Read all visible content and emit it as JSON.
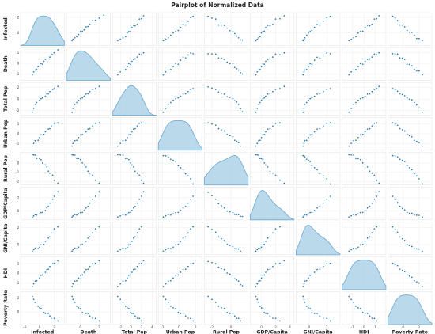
{
  "chart_data": {
    "type": "scatter",
    "title": "Pairplot of Normalized Data",
    "variables": [
      "Infected",
      "Death",
      "Total Pop",
      "Urban Pop",
      "Rural Pop",
      "GDP/Capita",
      "GNI/Capita",
      "HDI",
      "Poverty Rate"
    ],
    "diagonal": "kde",
    "grid": true,
    "xticks": [
      [
        "-2",
        "0",
        "2"
      ],
      [
        "0",
        "2"
      ],
      [
        "-2",
        "0",
        "2",
        "4"
      ],
      [
        "-2",
        "0",
        "2"
      ],
      [
        "-2",
        "0"
      ],
      [
        "0",
        "2",
        "4"
      ],
      [
        "0",
        "2"
      ],
      [
        "-1",
        "0",
        "1"
      ],
      [
        "0",
        "2"
      ]
    ],
    "yticks": [
      [
        "2",
        "0"
      ],
      [
        "1",
        "0",
        "-1"
      ],
      [
        "2",
        "0",
        "-2"
      ],
      [
        "1",
        "0",
        "-1"
      ],
      [
        "0",
        "-1",
        "-2"
      ],
      [
        "2",
        "0"
      ],
      [
        "2",
        "0"
      ],
      [
        "1",
        "0",
        "-1"
      ],
      [
        "2",
        "0"
      ]
    ],
    "xlim": [
      [
        -2.6,
        3.4
      ],
      [
        -1.5,
        3.2
      ],
      [
        -3.5,
        4.8
      ],
      [
        -2.5,
        2.8
      ],
      [
        -2.8,
        1.8
      ],
      [
        -1.6,
        4.6
      ],
      [
        -1.5,
        3.5
      ],
      [
        -1.9,
        1.9
      ],
      [
        -1.9,
        3.6
      ]
    ],
    "ylim": [
      [
        -1.6,
        2.6
      ],
      [
        -1.6,
        1.5
      ],
      [
        -2.8,
        2.9
      ],
      [
        -1.7,
        1.7
      ],
      [
        -2.4,
        1.2
      ],
      [
        -1.3,
        3.6
      ],
      [
        -1.2,
        2.7
      ],
      [
        -1.7,
        1.7
      ],
      [
        -1.8,
        2.9
      ]
    ],
    "x": [
      [
        -1.0,
        -0.8,
        -0.6,
        -0.4,
        -0.2,
        0.0,
        0.2,
        0.4,
        0.6,
        0.8,
        1.0,
        1.2,
        1.4,
        1.6,
        1.8,
        2.0,
        2.5,
        2.8
      ],
      [
        -0.9,
        -0.8,
        -0.6,
        -0.4,
        -0.2,
        0.0,
        0.2,
        0.4,
        0.6,
        0.8,
        1.0,
        1.3,
        1.6,
        2.0,
        2.5
      ],
      [
        -2.5,
        -2.0,
        -1.5,
        -1.0,
        -0.7,
        -0.4,
        -0.1,
        0.2,
        0.5,
        0.8,
        1.2,
        1.6,
        2.0,
        2.4
      ],
      [
        -1.9,
        -1.6,
        -1.3,
        -1.0,
        -0.7,
        -0.4,
        -0.1,
        0.2,
        0.5,
        0.8,
        1.1,
        1.4,
        1.7
      ],
      [
        -2.4,
        -2.0,
        -1.6,
        -1.3,
        -1.0,
        -0.7,
        -0.4,
        -0.1,
        0.2,
        0.4,
        0.6,
        0.8,
        1.0,
        1.2
      ],
      [
        -0.8,
        -0.6,
        -0.4,
        -0.2,
        0.0,
        0.2,
        0.4,
        0.6,
        0.9,
        1.2,
        1.6,
        2.0,
        2.6,
        3.2
      ],
      [
        -0.7,
        -0.6,
        -0.5,
        -0.3,
        -0.1,
        0.1,
        0.3,
        0.6,
        0.9,
        1.2,
        1.6,
        2.0,
        2.4
      ],
      [
        -1.3,
        -1.1,
        -0.9,
        -0.7,
        -0.5,
        -0.3,
        -0.1,
        0.1,
        0.3,
        0.5,
        0.7,
        0.9,
        1.1,
        1.3
      ],
      [
        -1.3,
        -1.0,
        -0.7,
        -0.4,
        -0.1,
        0.2,
        0.5,
        0.8,
        1.1,
        1.4,
        1.7,
        2.0,
        2.4
      ]
    ],
    "y": [
      [
        -0.9,
        -0.7,
        -0.8,
        -0.4,
        -0.2,
        0.1,
        0.0,
        0.4,
        0.3,
        0.7,
        0.9,
        1.1,
        1.0,
        1.5,
        1.7,
        1.9,
        2.2,
        2.4
      ],
      [
        -1.0,
        -0.7,
        -0.8,
        -0.5,
        -0.3,
        -0.1,
        0.0,
        0.2,
        0.3,
        0.5,
        0.6,
        0.8,
        1.0,
        0.9,
        1.2
      ],
      [
        -2.2,
        -1.6,
        -1.0,
        -0.5,
        -0.2,
        0.0,
        0.3,
        0.5,
        0.8,
        1.0,
        1.3,
        1.6,
        1.9,
        2.2
      ],
      [
        -1.2,
        -1.0,
        -0.8,
        -0.6,
        -0.4,
        -0.2,
        0.0,
        0.2,
        0.4,
        0.6,
        0.8,
        1.0,
        1.2
      ],
      [
        -2.2,
        -1.8,
        -1.4,
        -1.1,
        -0.8,
        -0.5,
        -0.2,
        0.1,
        0.3,
        0.5,
        0.6,
        0.8,
        0.9,
        1.0
      ],
      [
        -0.8,
        -0.7,
        -0.6,
        -0.5,
        -0.4,
        -0.3,
        -0.1,
        0.1,
        0.4,
        0.8,
        1.2,
        1.7,
        2.3,
        2.9
      ],
      [
        -0.7,
        -0.6,
        -0.5,
        -0.4,
        -0.3,
        -0.1,
        0.1,
        0.4,
        0.7,
        1.0,
        1.4,
        1.8,
        2.2
      ],
      [
        -1.3,
        -1.1,
        -0.9,
        -0.7,
        -0.5,
        -0.3,
        -0.1,
        0.1,
        0.3,
        0.5,
        0.7,
        0.9,
        1.1,
        1.3
      ],
      [
        -1.2,
        -0.9,
        -1.0,
        -0.5,
        -0.3,
        0.0,
        -0.2,
        0.4,
        0.6,
        0.9,
        1.3,
        1.8,
        2.3
      ]
    ]
  }
}
